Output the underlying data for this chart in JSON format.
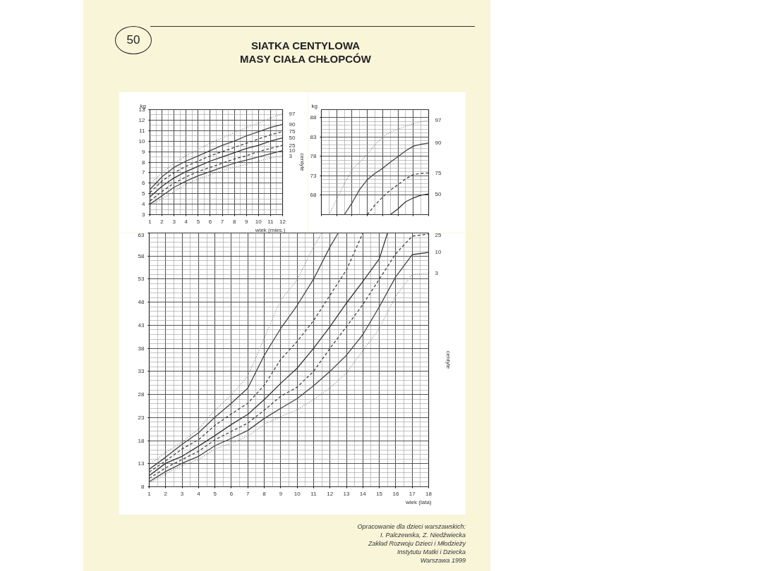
{
  "chart_data": [
    {
      "type": "line",
      "title": "SIATKA CENTYLOWA\nMASY CIAŁA CHŁOPCÓW",
      "annotations": [
        "50"
      ],
      "xlabel": "wiek (mies.)",
      "ylabel": "kg",
      "y2label": "centyle",
      "grid": true,
      "xlim": [
        1,
        12
      ],
      "xticks": [
        1,
        2,
        3,
        4,
        5,
        6,
        7,
        8,
        9,
        10,
        11,
        12
      ],
      "ylim": [
        3,
        13
      ],
      "yticks": [
        3,
        4,
        5,
        6,
        7,
        8,
        9,
        10,
        11,
        12,
        13
      ],
      "x": [
        1,
        2,
        3,
        4,
        5,
        6,
        7,
        8,
        9,
        10,
        11,
        12
      ],
      "series": [
        {
          "name": "97",
          "color": "#8a8a8a",
          "line_style": "dotted",
          "values": [
            5.9,
            7.0,
            7.9,
            8.6,
            9.2,
            9.8,
            10.3,
            10.8,
            11.3,
            11.7,
            12.2,
            12.6
          ]
        },
        {
          "name": "90",
          "color": "#444444",
          "line_style": "solid",
          "values": [
            5.4,
            6.6,
            7.5,
            8.1,
            8.6,
            9.1,
            9.6,
            10.0,
            10.5,
            10.9,
            11.3,
            11.6
          ]
        },
        {
          "name": "75",
          "color": "#444444",
          "line_style": "dashed",
          "values": [
            5.1,
            6.2,
            7.0,
            7.6,
            8.1,
            8.6,
            9.0,
            9.4,
            9.8,
            10.2,
            10.6,
            10.9
          ]
        },
        {
          "name": "50",
          "color": "#333333",
          "line_style": "solid",
          "values": [
            4.7,
            5.7,
            6.5,
            7.1,
            7.6,
            8.1,
            8.5,
            8.9,
            9.3,
            9.6,
            10.0,
            10.3
          ]
        },
        {
          "name": "25",
          "color": "#444444",
          "line_style": "dashed",
          "values": [
            4.3,
            5.2,
            6.0,
            6.6,
            7.1,
            7.5,
            7.9,
            8.3,
            8.6,
            9.0,
            9.3,
            9.6
          ]
        },
        {
          "name": "10",
          "color": "#444444",
          "line_style": "solid",
          "values": [
            4.0,
            4.8,
            5.6,
            6.2,
            6.7,
            7.1,
            7.5,
            7.9,
            8.2,
            8.5,
            8.8,
            9.1
          ]
        },
        {
          "name": "3",
          "color": "#8a8a8a",
          "line_style": "dotted",
          "values": [
            3.9,
            4.5,
            5.2,
            5.9,
            6.4,
            6.8,
            7.2,
            7.5,
            7.8,
            8.1,
            8.4,
            8.6
          ]
        }
      ]
    },
    {
      "type": "line",
      "ylabel": "kg",
      "grid": true,
      "categories": [
        null,
        null,
        null,
        null,
        null,
        null,
        null,
        null,
        null,
        null,
        null,
        null,
        null,
        null,
        null
      ],
      "ylim": [
        63,
        90
      ],
      "yticks": [
        68,
        73,
        78,
        83,
        88
      ],
      "series": [
        {
          "name": "97",
          "color": "#8a8a8a",
          "line_style": "dotted",
          "values": [
            null,
            63,
            67,
            71,
            74.5,
            76.5,
            78.5,
            81,
            83,
            84.2,
            85,
            85.7,
            86.3,
            86.9,
            87.3
          ]
        },
        {
          "name": "90",
          "color": "#444444",
          "line_style": "solid",
          "values": [
            null,
            null,
            null,
            63,
            66,
            69.5,
            72,
            73.6,
            74.9,
            76.5,
            77.9,
            79.4,
            80.6,
            81.1,
            81.4
          ]
        },
        {
          "name": "75",
          "color": "#444444",
          "line_style": "dashed",
          "values": [
            null,
            null,
            null,
            null,
            null,
            null,
            63,
            65.5,
            67.5,
            69.3,
            70.7,
            72.2,
            73.3,
            73.6,
            73.7
          ]
        },
        {
          "name": "50",
          "color": "#333333",
          "line_style": "solid",
          "values": [
            null,
            null,
            null,
            null,
            null,
            null,
            null,
            null,
            null,
            63,
            64.5,
            66.3,
            67.3,
            68,
            68.3
          ]
        }
      ]
    },
    {
      "type": "line",
      "xlabel": "wiek (lata)",
      "y2label": "centyle",
      "grid": true,
      "annotations": [
        "Opracowanie dla dzieci warszawskich:\nI. Palczewska, Z. Niedźwiecka\nZakład Rozwoju Dzieci i Młodzieży\nInstytutu Matki i Dziecka\nWarszawa 1999"
      ],
      "xlim": [
        1,
        18
      ],
      "xticks": [
        1,
        2,
        3,
        4,
        5,
        6,
        7,
        8,
        9,
        10,
        11,
        12,
        13,
        14,
        15,
        16,
        17,
        18
      ],
      "ylim": [
        8,
        63
      ],
      "yticks": [
        8,
        13,
        18,
        23,
        28,
        33,
        38,
        43,
        48,
        53,
        58,
        63
      ],
      "x": [
        1,
        2,
        3,
        4,
        5,
        6,
        7,
        8,
        9,
        10,
        11,
        12,
        13,
        14,
        15,
        16,
        17,
        18
      ],
      "series": [
        {
          "color": "#8a8a8a",
          "line_style": "dotted",
          "x": [
            1,
            2,
            3,
            4,
            5,
            6,
            7,
            8,
            9,
            10,
            11,
            11.5
          ],
          "values": [
            12.8,
            15.4,
            17.7,
            20.5,
            24.6,
            27.9,
            32,
            40.2,
            48.5,
            52.8,
            60,
            63
          ]
        },
        {
          "color": "#444444",
          "line_style": "solid",
          "x": [
            1,
            2,
            3,
            4,
            5,
            6,
            7,
            8,
            9,
            10,
            11,
            12,
            12.5
          ],
          "values": [
            11.8,
            14.4,
            17.2,
            19.7,
            23.1,
            26.1,
            29.4,
            36.5,
            42.3,
            47.3,
            53,
            60,
            63
          ]
        },
        {
          "color": "#444444",
          "line_style": "dashed",
          "x": [
            1,
            2,
            3,
            4,
            5,
            6,
            7,
            8,
            9,
            10,
            11,
            12,
            13,
            14
          ],
          "values": [
            11.2,
            13.6,
            16.2,
            18.2,
            21.3,
            23.8,
            26.1,
            30,
            35.6,
            39.5,
            44,
            49.5,
            55,
            63
          ]
        },
        {
          "color": "#333333",
          "line_style": "solid",
          "x": [
            1,
            2,
            3,
            4,
            5,
            6,
            7,
            8,
            9,
            10,
            11,
            12,
            13,
            14,
            15,
            15.5
          ],
          "values": [
            10.4,
            13.1,
            14.6,
            16.8,
            19.1,
            21.5,
            23.7,
            26.9,
            30.4,
            33.7,
            38,
            42.7,
            47.8,
            52.5,
            57.4,
            63
          ]
        },
        {
          "name": "25",
          "color": "#444444",
          "line_style": "dashed",
          "values": [
            9.8,
            12.1,
            13.9,
            15.7,
            18.2,
            20,
            21.8,
            24.6,
            27.6,
            29.6,
            33,
            38,
            42.7,
            47.5,
            53,
            58.5,
            62.3,
            62.8
          ]
        },
        {
          "name": "10",
          "color": "#444444",
          "line_style": "solid",
          "values": [
            9.1,
            11.3,
            13.1,
            14.6,
            16.9,
            18.5,
            20.2,
            22.8,
            25,
            27.1,
            29.9,
            33,
            36.5,
            41,
            47,
            53.5,
            58.3,
            58.8
          ]
        },
        {
          "name": "3",
          "color": "#8a8a8a",
          "line_style": "dotted",
          "values": [
            8.8,
            10.8,
            12.6,
            13.9,
            16.2,
            17.4,
            19,
            21.5,
            23.2,
            24.7,
            26.9,
            29.4,
            32.7,
            37.5,
            42.3,
            49.3,
            54,
            54.3
          ]
        }
      ]
    }
  ]
}
